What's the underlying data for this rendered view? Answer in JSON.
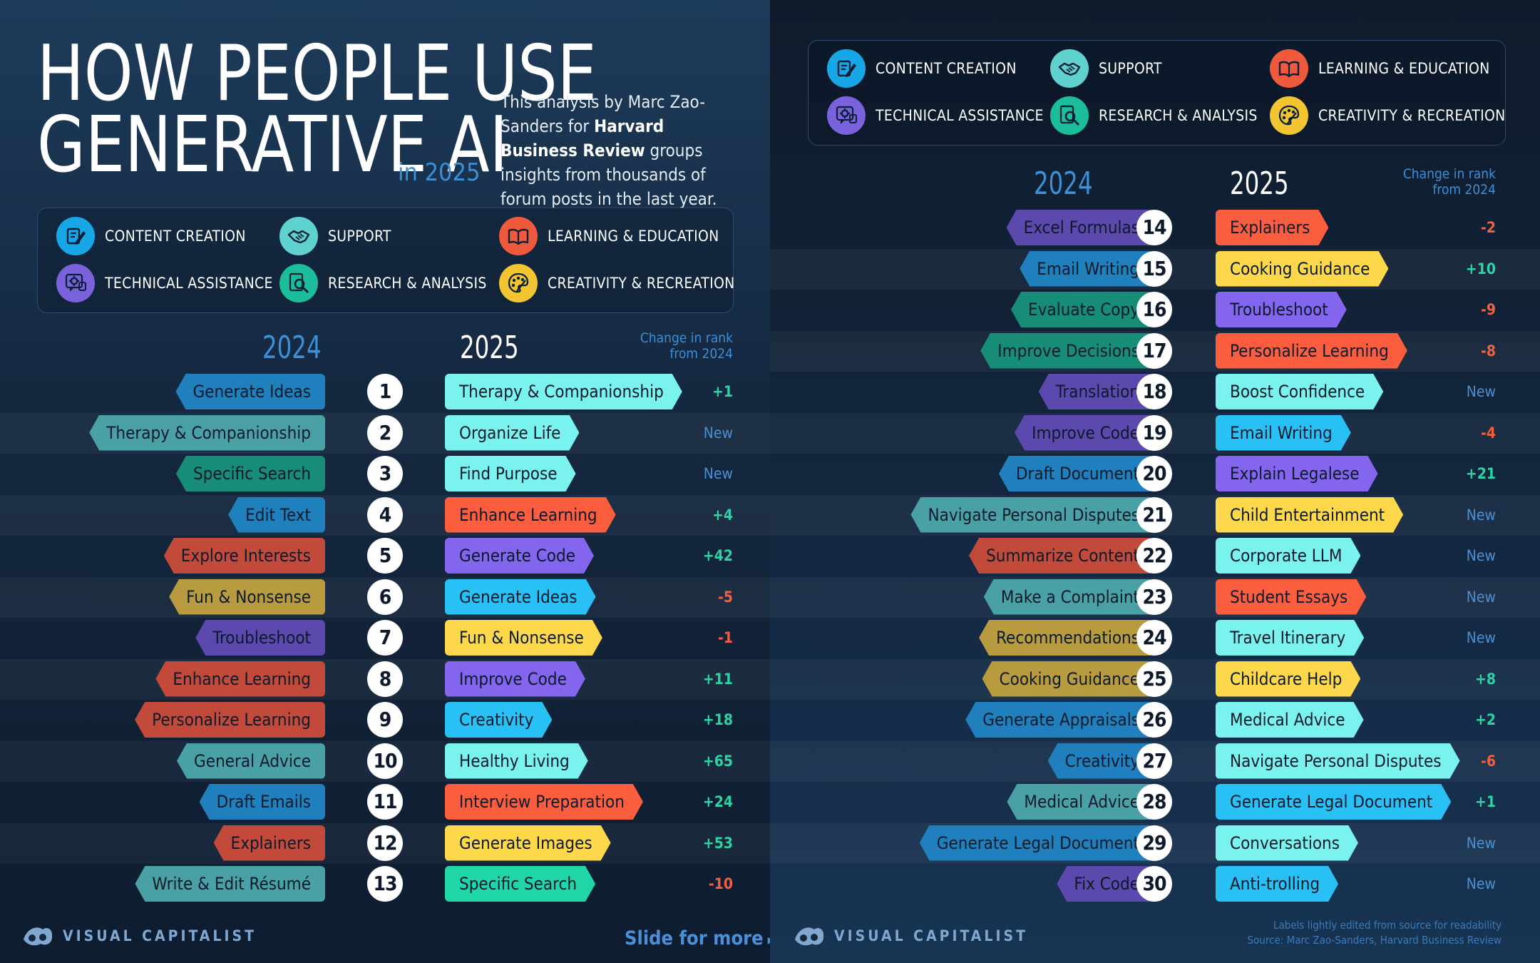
{
  "title": {
    "line1": "HOW PEOPLE USE",
    "line2": "GENERATIVE AI",
    "suffix": "in 2025"
  },
  "intro": {
    "pre": "This analysis by Marc Zao-Sanders for ",
    "bold": "Harvard Business Review",
    "post": " groups insights from thousands of forum posts in the last year."
  },
  "legend": [
    {
      "key": "content",
      "label": "CONTENT CREATION",
      "color": "#17a6e6",
      "icon": "pen-paper-icon"
    },
    {
      "key": "support",
      "label": "SUPPORT",
      "color": "#5fd1cf",
      "icon": "handshake-icon"
    },
    {
      "key": "learning",
      "label": "LEARNING & EDUCATION",
      "color": "#f05a3c",
      "icon": "book-icon"
    },
    {
      "key": "technical",
      "label": "TECHNICAL ASSISTANCE",
      "color": "#7b62dd",
      "icon": "gear-chat-icon"
    },
    {
      "key": "research",
      "label": "RESEARCH & ANALYSIS",
      "color": "#1bbd9a",
      "icon": "magnifier-doc-icon"
    },
    {
      "key": "creativity",
      "label": "CREATIVITY & RECREATION",
      "color": "#f3c531",
      "icon": "palette-icon"
    }
  ],
  "headers": {
    "y2024": "2024",
    "y2025": "2025",
    "change_line1": "Change in rank",
    "change_line2": "from 2024"
  },
  "colors": {
    "pill2024": {
      "content": "#1f80bd",
      "support": "#4aa1a5",
      "learning": "#c24a3a",
      "technical": "#5b49ad",
      "research": "#178c76",
      "creativity": "#b89a3f"
    },
    "pill2025": {
      "content": "#29c0f6",
      "support": "#7af2ed",
      "learning": "#fb5e3f",
      "technical": "#8466ee",
      "research": "#20d6a8",
      "creativity": "#fcd84a"
    },
    "text2024": "#0c1a2a",
    "text2025": "#0c1a2a",
    "positive": "#2dd3a3",
    "negative": "#f4603f",
    "new": "#4d8fd0"
  },
  "rows": [
    {
      "rank": "1",
      "y2024": {
        "label": "Generate Ideas",
        "cat": "content"
      },
      "y2025": {
        "label": "Therapy & Companionship",
        "cat": "support"
      },
      "change": "+1"
    },
    {
      "rank": "2",
      "y2024": {
        "label": "Therapy & Companionship",
        "cat": "support"
      },
      "y2025": {
        "label": "Organize Life",
        "cat": "support"
      },
      "change": "New"
    },
    {
      "rank": "3",
      "y2024": {
        "label": "Specific Search",
        "cat": "research"
      },
      "y2025": {
        "label": "Find Purpose",
        "cat": "support"
      },
      "change": "New"
    },
    {
      "rank": "4",
      "y2024": {
        "label": "Edit Text",
        "cat": "content"
      },
      "y2025": {
        "label": "Enhance Learning",
        "cat": "learning"
      },
      "change": "+4"
    },
    {
      "rank": "5",
      "y2024": {
        "label": "Explore Interests",
        "cat": "learning"
      },
      "y2025": {
        "label": "Generate Code",
        "cat": "technical"
      },
      "change": "+42"
    },
    {
      "rank": "6",
      "y2024": {
        "label": "Fun & Nonsense",
        "cat": "creativity"
      },
      "y2025": {
        "label": "Generate Ideas",
        "cat": "content"
      },
      "change": "-5"
    },
    {
      "rank": "7",
      "y2024": {
        "label": "Troubleshoot",
        "cat": "technical"
      },
      "y2025": {
        "label": "Fun & Nonsense",
        "cat": "creativity"
      },
      "change": "-1"
    },
    {
      "rank": "8",
      "y2024": {
        "label": "Enhance Learning",
        "cat": "learning"
      },
      "y2025": {
        "label": "Improve Code",
        "cat": "technical"
      },
      "change": "+11"
    },
    {
      "rank": "9",
      "y2024": {
        "label": "Personalize Learning",
        "cat": "learning"
      },
      "y2025": {
        "label": "Creativity",
        "cat": "content"
      },
      "change": "+18"
    },
    {
      "rank": "10",
      "y2024": {
        "label": "General Advice",
        "cat": "support"
      },
      "y2025": {
        "label": "Healthy Living",
        "cat": "support"
      },
      "change": "+65"
    },
    {
      "rank": "11",
      "y2024": {
        "label": "Draft Emails",
        "cat": "content"
      },
      "y2025": {
        "label": "Interview Preparation",
        "cat": "learning"
      },
      "change": "+24"
    },
    {
      "rank": "12",
      "y2024": {
        "label": "Explainers",
        "cat": "learning"
      },
      "y2025": {
        "label": "Generate Images",
        "cat": "creativity"
      },
      "change": "+53"
    },
    {
      "rank": "13",
      "y2024": {
        "label": "Write & Edit Résumé",
        "cat": "support"
      },
      "y2025": {
        "label": "Specific Search",
        "cat": "research"
      },
      "change": "-10"
    },
    {
      "rank": "14",
      "y2024": {
        "label": "Excel Formulas",
        "cat": "technical"
      },
      "y2025": {
        "label": "Explainers",
        "cat": "learning"
      },
      "change": "-2"
    },
    {
      "rank": "15",
      "y2024": {
        "label": "Email Writing",
        "cat": "content"
      },
      "y2025": {
        "label": "Cooking Guidance",
        "cat": "creativity"
      },
      "change": "+10"
    },
    {
      "rank": "16",
      "y2024": {
        "label": "Evaluate Copy",
        "cat": "research"
      },
      "y2025": {
        "label": "Troubleshoot",
        "cat": "technical"
      },
      "change": "-9"
    },
    {
      "rank": "17",
      "y2024": {
        "label": "Improve Decisions",
        "cat": "research"
      },
      "y2025": {
        "label": "Personalize Learning",
        "cat": "learning"
      },
      "change": "-8"
    },
    {
      "rank": "18",
      "y2024": {
        "label": "Translation",
        "cat": "technical"
      },
      "y2025": {
        "label": "Boost Confidence",
        "cat": "support"
      },
      "change": "New"
    },
    {
      "rank": "19",
      "y2024": {
        "label": "Improve Code",
        "cat": "technical"
      },
      "y2025": {
        "label": "Email Writing",
        "cat": "content"
      },
      "change": "-4"
    },
    {
      "rank": "20",
      "y2024": {
        "label": "Draft Document",
        "cat": "content"
      },
      "y2025": {
        "label": "Explain Legalese",
        "cat": "technical"
      },
      "change": "+21"
    },
    {
      "rank": "21",
      "y2024": {
        "label": "Navigate Personal Disputes",
        "cat": "support"
      },
      "y2025": {
        "label": "Child Entertainment",
        "cat": "creativity"
      },
      "change": "New"
    },
    {
      "rank": "22",
      "y2024": {
        "label": "Summarize Content",
        "cat": "learning"
      },
      "y2025": {
        "label": "Corporate LLM",
        "cat": "support"
      },
      "change": "New"
    },
    {
      "rank": "23",
      "y2024": {
        "label": "Make a Complaint",
        "cat": "support"
      },
      "y2025": {
        "label": "Student Essays",
        "cat": "learning"
      },
      "change": "New"
    },
    {
      "rank": "24",
      "y2024": {
        "label": "Recommendations",
        "cat": "creativity"
      },
      "y2025": {
        "label": "Travel Itinerary",
        "cat": "support"
      },
      "change": "New"
    },
    {
      "rank": "25",
      "y2024": {
        "label": "Cooking Guidance",
        "cat": "creativity"
      },
      "y2025": {
        "label": "Childcare Help",
        "cat": "creativity"
      },
      "change": "+8"
    },
    {
      "rank": "26",
      "y2024": {
        "label": "Generate Appraisals",
        "cat": "content"
      },
      "y2025": {
        "label": "Medical Advice",
        "cat": "support"
      },
      "change": "+2"
    },
    {
      "rank": "27",
      "y2024": {
        "label": "Creativity",
        "cat": "content"
      },
      "y2025": {
        "label": "Navigate Personal Disputes",
        "cat": "support"
      },
      "change": "-6"
    },
    {
      "rank": "28",
      "y2024": {
        "label": "Medical Advice",
        "cat": "support"
      },
      "y2025": {
        "label": "Generate Legal Document",
        "cat": "content"
      },
      "change": "+1"
    },
    {
      "rank": "29",
      "y2024": {
        "label": "Generate Legal Document",
        "cat": "content"
      },
      "y2025": {
        "label": "Conversations",
        "cat": "support"
      },
      "change": "New"
    },
    {
      "rank": "30",
      "y2024": {
        "label": "Fix Code",
        "cat": "technical"
      },
      "y2025": {
        "label": "Anti-trolling",
        "cat": "content"
      },
      "change": "New"
    }
  ],
  "footer": {
    "brand": "VISUAL CAPITALIST",
    "slide_more": "Slide for more",
    "note": "Labels lightly edited from source for readability",
    "source": "Source: Marc Zao-Sanders, Harvard Business Review"
  }
}
